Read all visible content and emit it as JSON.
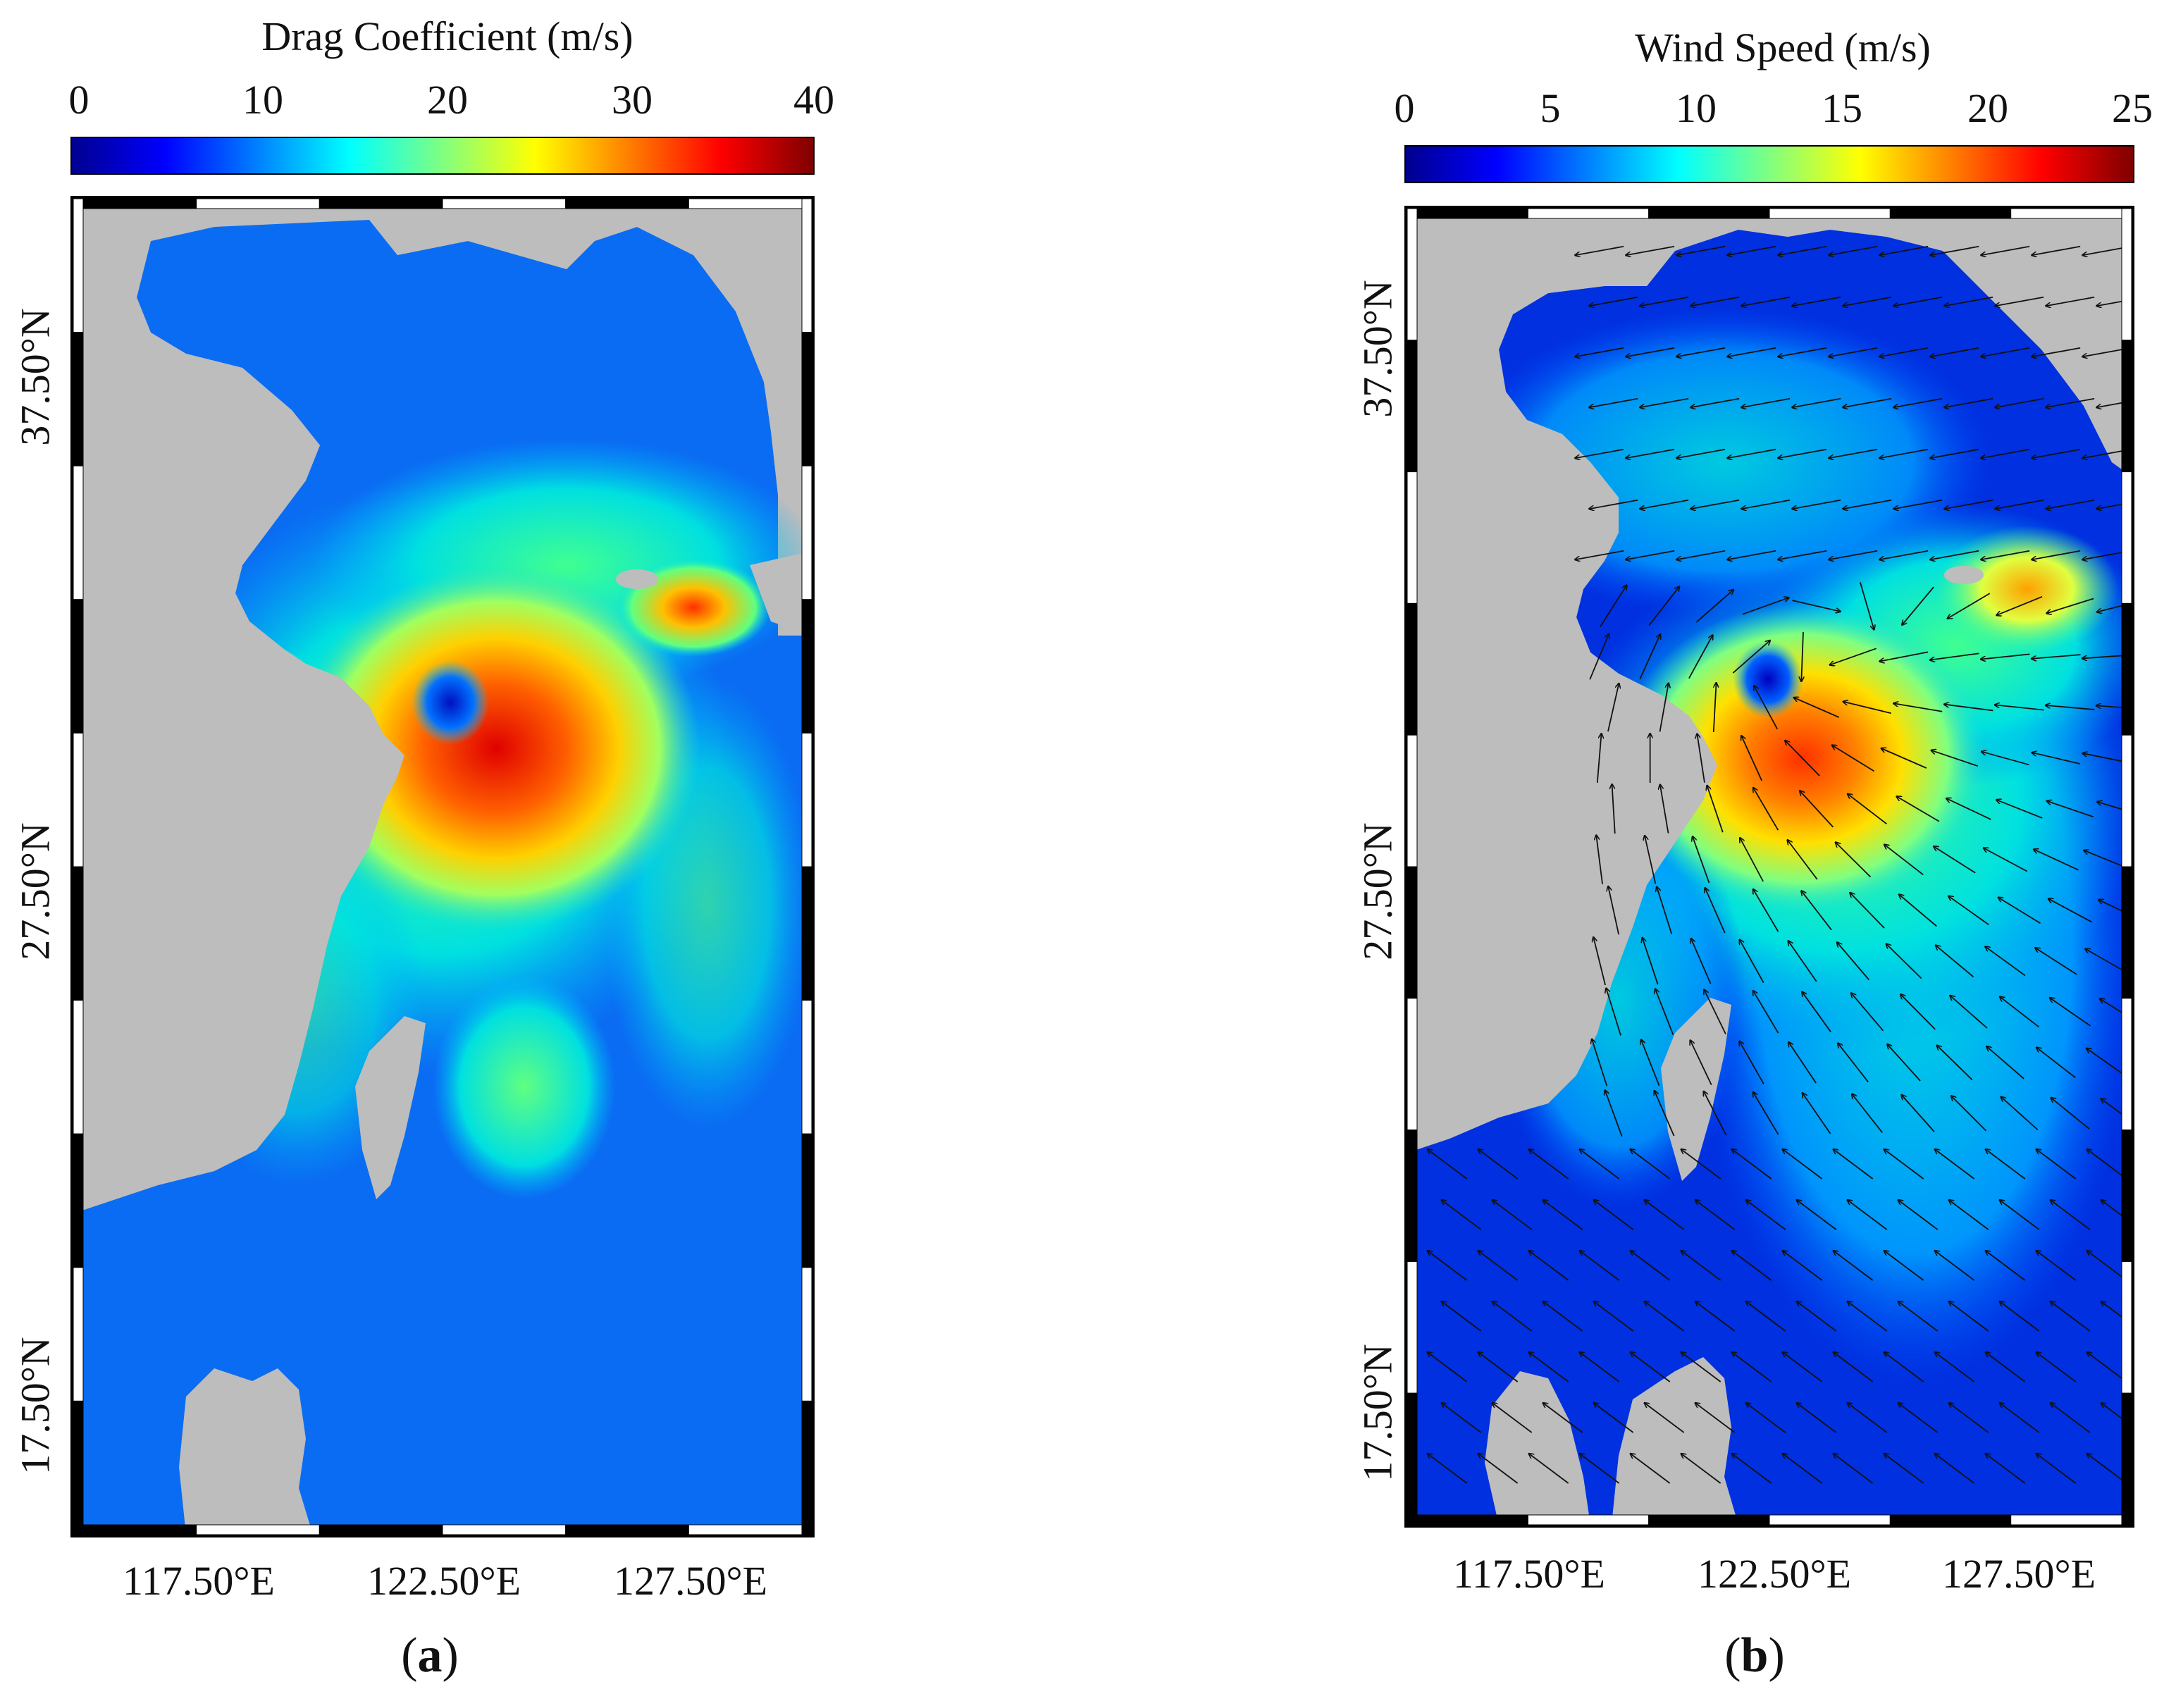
{
  "panel_a": {
    "colorbar_title": "Drag Coefficient (m/s)",
    "colorbar_ticks": [
      "0",
      "10",
      "20",
      "30",
      "40"
    ],
    "lon_ticks": [
      "117.50°E",
      "122.50°E",
      "127.50°E"
    ],
    "lat_ticks": [
      "37.50°N",
      "27.50°N",
      "17.50°N"
    ],
    "label_open": "(",
    "label_letter": "a",
    "label_close": ")"
  },
  "panel_b": {
    "colorbar_title": "Wind Speed (m/s)",
    "colorbar_ticks": [
      "0",
      "5",
      "10",
      "15",
      "20",
      "25"
    ],
    "lon_ticks": [
      "117.50°E",
      "122.50°E",
      "127.50°E"
    ],
    "lat_ticks": [
      "37.50°N",
      "27.50°N",
      "17.50°N"
    ],
    "label_open": "(",
    "label_letter": "b",
    "label_close": ")"
  },
  "colors": {
    "land": "#bdbdbd",
    "colormap": [
      "#00008f",
      "#0000ff",
      "#0080ff",
      "#00ffff",
      "#80ff80",
      "#ffff00",
      "#ff8000",
      "#ff0000",
      "#800000"
    ]
  }
}
